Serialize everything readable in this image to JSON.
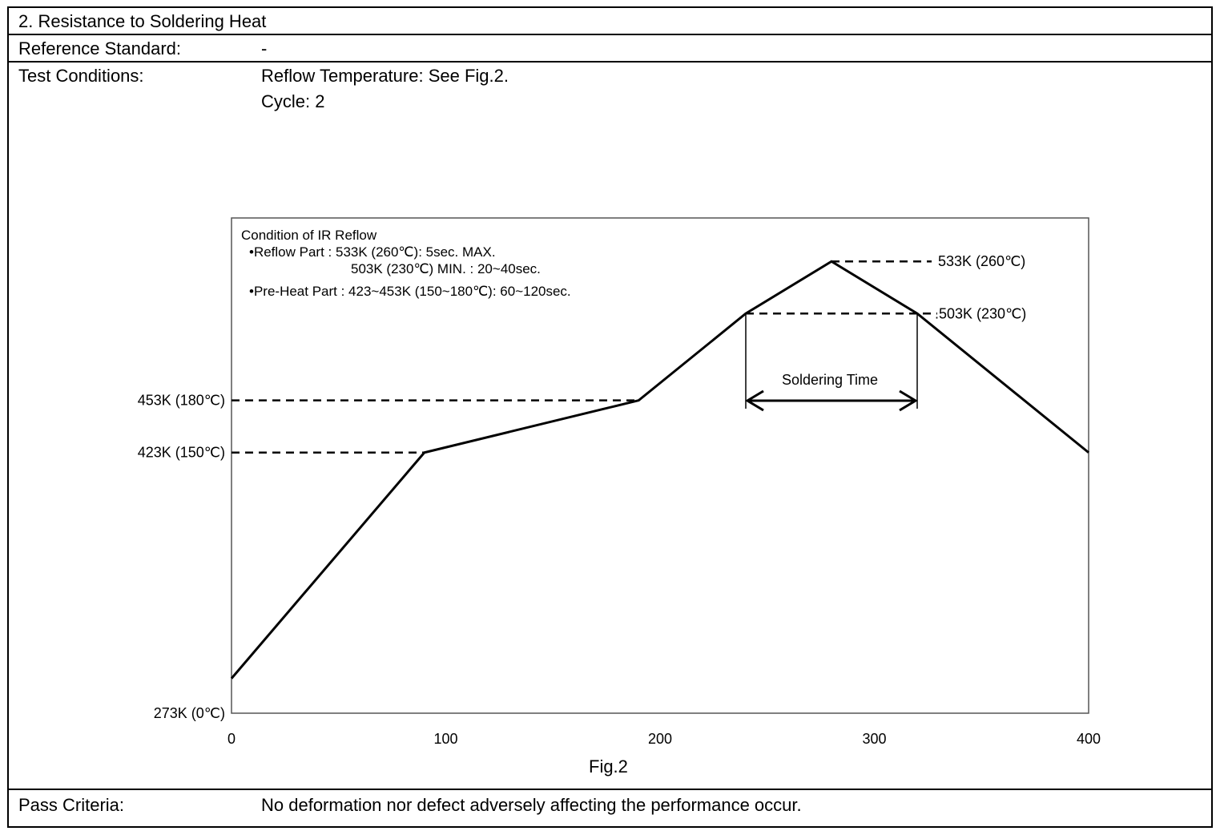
{
  "section_title": "2. Resistance to Soldering Heat",
  "reference_standard": {
    "label": "Reference Standard:",
    "value": "-"
  },
  "test_conditions": {
    "label": "Test Conditions:",
    "lines": [
      "Reflow Temperature: See Fig.2.",
      "Cycle: 2"
    ]
  },
  "figure_caption": "Fig.2",
  "pass_criteria": {
    "label": "Pass Criteria:",
    "value": "No deformation nor defect adversely affecting the performance occur."
  },
  "chart_data": {
    "type": "line",
    "xlim": [
      0,
      400
    ],
    "x_ticks": [
      "0",
      "100",
      "200",
      "300",
      "400"
    ],
    "y_ticks": [
      "273K (0℃)",
      "423K (150℃)",
      "453K (180℃)"
    ],
    "reference_labels": [
      "533K (260℃)",
      ".503K (230℃)"
    ],
    "annotation_title": "Condition of IR Reflow",
    "annotation_lines": [
      "•Reflow Part : 533K (260℃): 5sec. MAX.",
      "503K (230℃) MIN. :  20~40sec.",
      "•Pre-Heat Part : 423~453K (150~180℃): 60~120sec."
    ],
    "span_label": "Soldering Time",
    "profile": {
      "x": [
        0,
        90,
        190,
        240,
        280,
        320,
        400
      ],
      "y": [
        20,
        150,
        180,
        230,
        260,
        230,
        150
      ]
    },
    "ylim": [
      0,
      285
    ],
    "grid": false
  }
}
